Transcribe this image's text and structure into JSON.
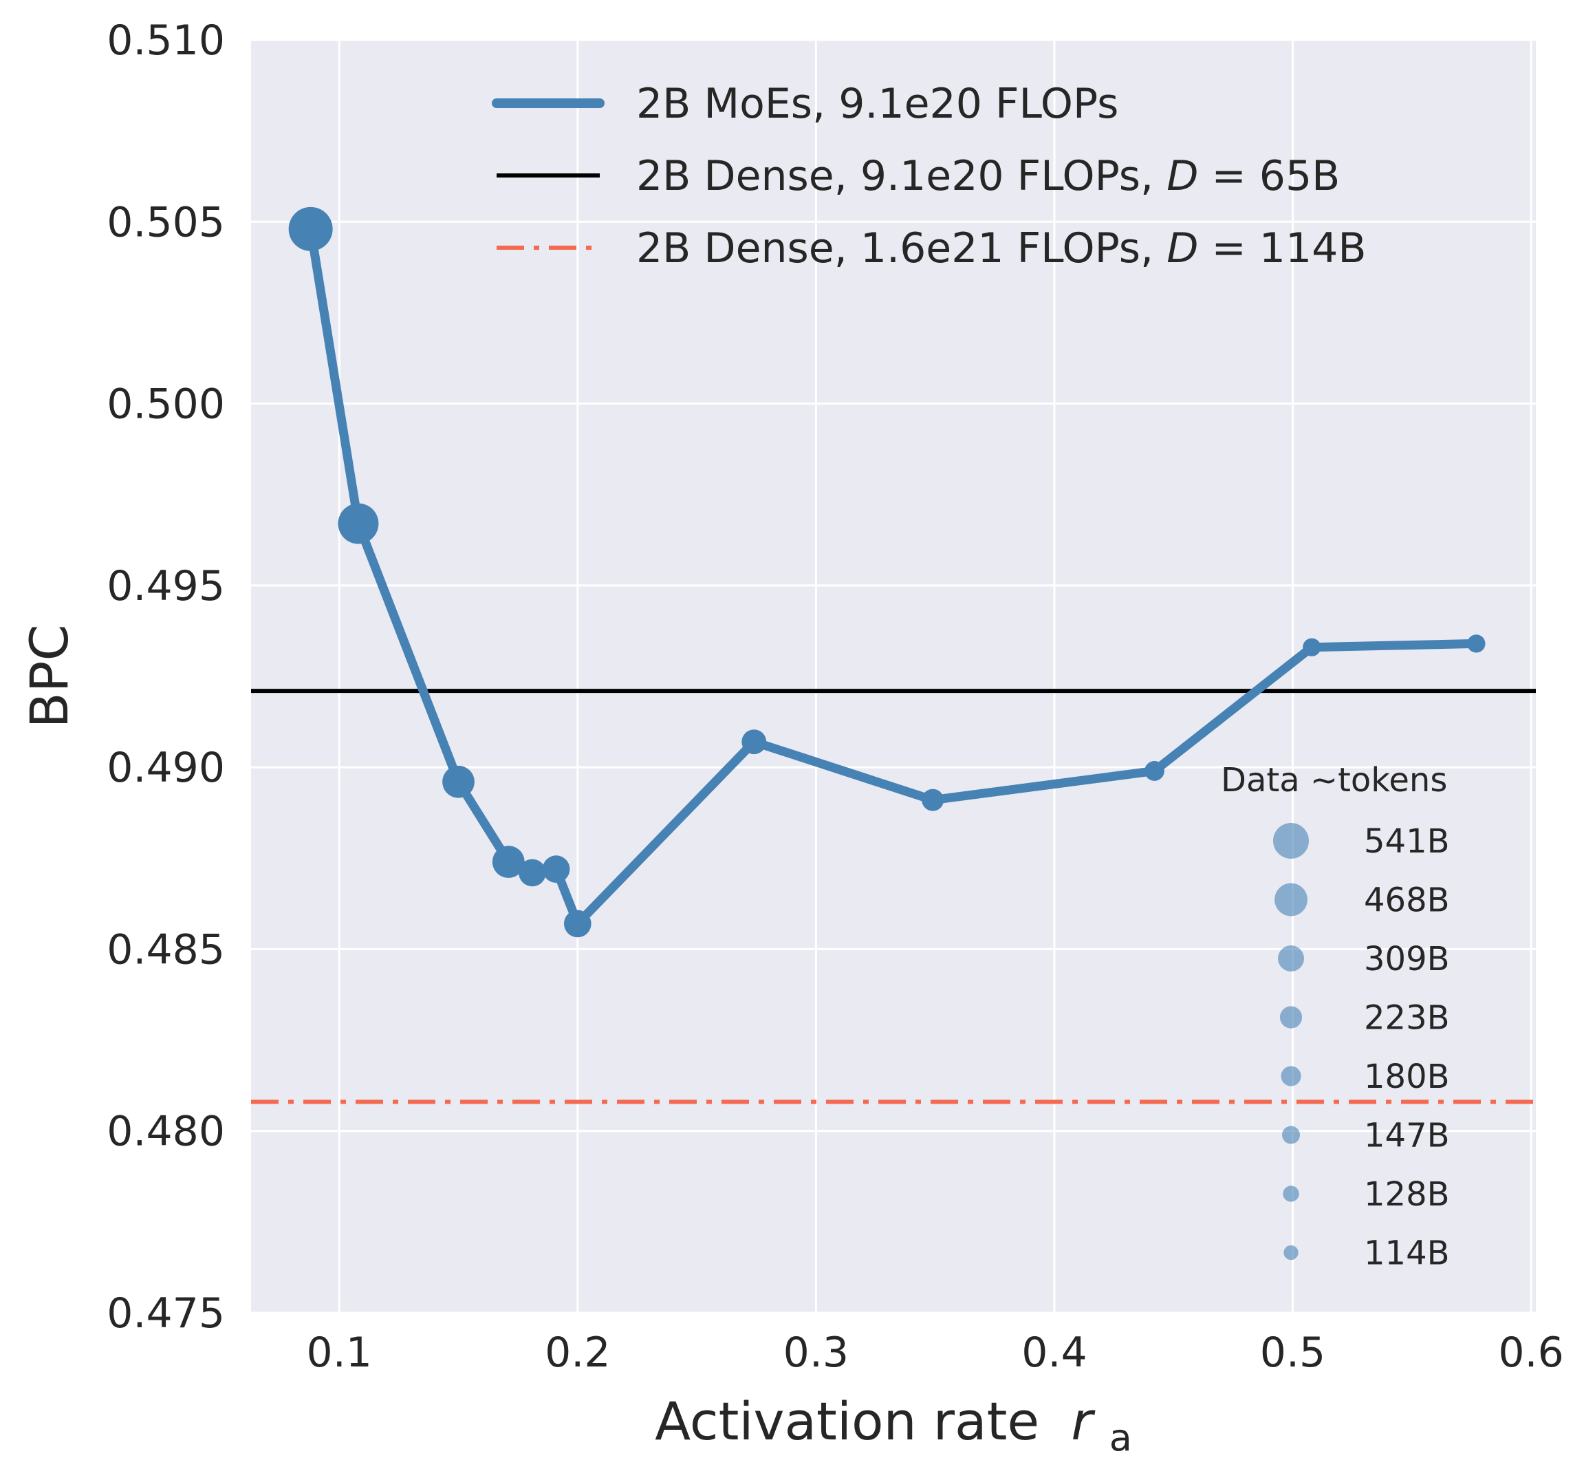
{
  "chart_data": {
    "type": "line",
    "xlabel": "Activation rate",
    "xlabel_symbol": "r",
    "xlabel_subscript": "a",
    "ylabel": "BPC",
    "xlim": [
      0.063,
      0.602
    ],
    "ylim": [
      0.475,
      0.51
    ],
    "xticks": [
      0.1,
      0.2,
      0.3,
      0.4,
      0.5,
      0.6
    ],
    "xtick_labels": [
      "0.1",
      "0.2",
      "0.3",
      "0.4",
      "0.5",
      "0.6"
    ],
    "yticks": [
      0.475,
      0.48,
      0.485,
      0.49,
      0.495,
      0.5,
      0.505,
      0.51
    ],
    "ytick_labels": [
      "0.475",
      "0.480",
      "0.485",
      "0.490",
      "0.495",
      "0.500",
      "0.505",
      "0.510"
    ],
    "grid": true,
    "background": "#EAEAF2",
    "series": [
      {
        "name": "2B MoEs, 9.1e20 FLOPs",
        "color": "#4682B4",
        "style": "solid-line-with-sized-markers",
        "points": [
          {
            "x": 0.088,
            "y": 0.5048,
            "tokens": "541B"
          },
          {
            "x": 0.108,
            "y": 0.4967,
            "tokens": "468B"
          },
          {
            "x": 0.15,
            "y": 0.4896,
            "tokens": "309B"
          },
          {
            "x": 0.171,
            "y": 0.4874,
            "tokens": "309B"
          },
          {
            "x": 0.181,
            "y": 0.4871,
            "tokens": "223B"
          },
          {
            "x": 0.191,
            "y": 0.4872,
            "tokens": "223B"
          },
          {
            "x": 0.2,
            "y": 0.4857,
            "tokens": "223B"
          },
          {
            "x": 0.274,
            "y": 0.4907,
            "tokens": "180B"
          },
          {
            "x": 0.349,
            "y": 0.4891,
            "tokens": "147B"
          },
          {
            "x": 0.442,
            "y": 0.4899,
            "tokens": "128B"
          },
          {
            "x": 0.508,
            "y": 0.4933,
            "tokens": "114B"
          },
          {
            "x": 0.577,
            "y": 0.4934,
            "tokens": "114B"
          }
        ]
      },
      {
        "name_parts": [
          "2B Dense, 9.1e20 FLOPs, ",
          "D",
          " = 65B"
        ],
        "color": "#000000",
        "style": "solid",
        "hline": 0.4921
      },
      {
        "name_parts": [
          "2B Dense, 1.6e21 FLOPs, ",
          "D",
          " = 114B"
        ],
        "color": "#F4694F",
        "style": "dashdot",
        "hline": 0.4808
      }
    ],
    "legend_placement": "top-right",
    "size_legend": {
      "title": "Data ~tokens",
      "placement": "lower-right",
      "marker_color": "#4682B4",
      "entries": [
        {
          "label": "541B",
          "scale": 1.0
        },
        {
          "label": "468B",
          "scale": 0.92
        },
        {
          "label": "309B",
          "scale": 0.73
        },
        {
          "label": "223B",
          "scale": 0.62
        },
        {
          "label": "180B",
          "scale": 0.56
        },
        {
          "label": "147B",
          "scale": 0.5
        },
        {
          "label": "128B",
          "scale": 0.45
        },
        {
          "label": "114B",
          "scale": 0.41
        }
      ]
    }
  }
}
